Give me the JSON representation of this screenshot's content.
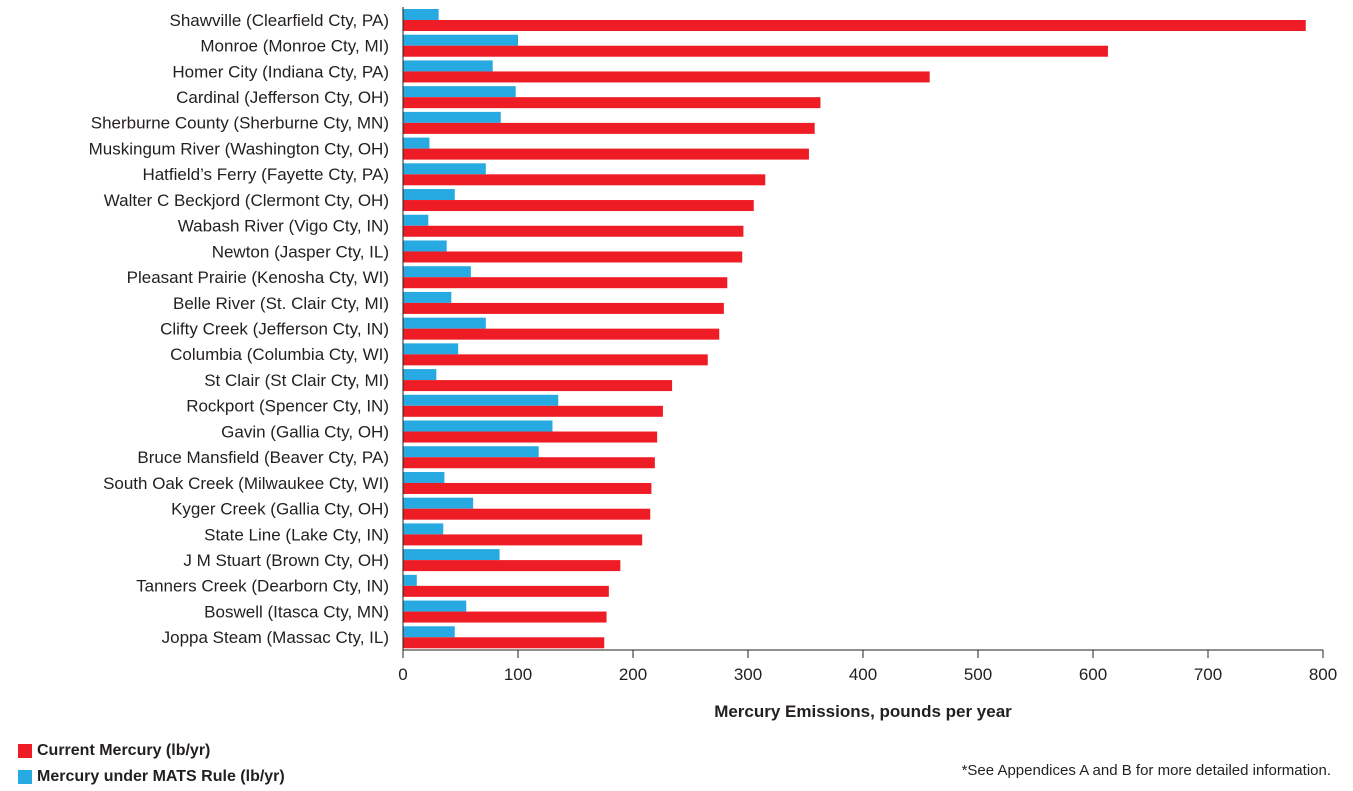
{
  "chart_data": {
    "type": "bar",
    "orientation": "horizontal",
    "xlabel": "Mercury Emissions, pounds per year",
    "xlim": [
      0,
      800
    ],
    "xticks": [
      0,
      100,
      200,
      300,
      400,
      500,
      600,
      700,
      800
    ],
    "grid": false,
    "legend_position": "bottom-left",
    "categories": [
      "Shawville (Clearfield Cty, PA)",
      "Monroe (Monroe Cty, MI)",
      "Homer City (Indiana Cty, PA)",
      "Cardinal (Jefferson Cty, OH)",
      "Sherburne County (Sherburne Cty, MN)",
      "Muskingum River (Washington Cty, OH)",
      "Hatfield’s Ferry (Fayette Cty, PA)",
      "Walter C Beckjord (Clermont Cty, OH)",
      "Wabash River (Vigo Cty, IN)",
      "Newton (Jasper Cty, IL)",
      "Pleasant Prairie (Kenosha Cty, WI)",
      "Belle River (St. Clair Cty, MI)",
      "Clifty Creek (Jefferson Cty, IN)",
      "Columbia (Columbia Cty, WI)",
      "St Clair (St Clair Cty, MI)",
      "Rockport (Spencer Cty, IN)",
      "Gavin (Gallia Cty, OH)",
      "Bruce Mansfield (Beaver Cty, PA)",
      "South Oak Creek (Milwaukee Cty, WI)",
      "Kyger Creek (Gallia Cty, OH)",
      "State Line (Lake Cty, IN)",
      "J M Stuart (Brown Cty, OH)",
      "Tanners Creek (Dearborn Cty, IN)",
      "Boswell (Itasca Cty, MN)",
      "Joppa Steam (Massac Cty, IL)"
    ],
    "series": [
      {
        "name": "Current Mercury (lb/yr)",
        "color": "#ee1c25",
        "values": [
          785,
          613,
          458,
          363,
          358,
          353,
          315,
          305,
          296,
          295,
          282,
          279,
          275,
          265,
          234,
          226,
          221,
          219,
          216,
          215,
          208,
          189,
          179,
          177,
          175
        ]
      },
      {
        "name": "Mercury under MATS Rule (lb/yr)",
        "color": "#27a9e1",
        "values": [
          31,
          100,
          78,
          98,
          85,
          23,
          72,
          45,
          22,
          38,
          59,
          42,
          72,
          48,
          29,
          135,
          130,
          118,
          36,
          61,
          35,
          84,
          12,
          55,
          45
        ]
      }
    ]
  },
  "legend": {
    "current_label": "Current Mercury (lb/yr)",
    "current_color": "#ee1c25",
    "mats_label": "Mercury under MATS Rule (lb/yr)",
    "mats_color": "#27a9e1"
  },
  "footnote": "*See Appendices A and B for more detailed information."
}
